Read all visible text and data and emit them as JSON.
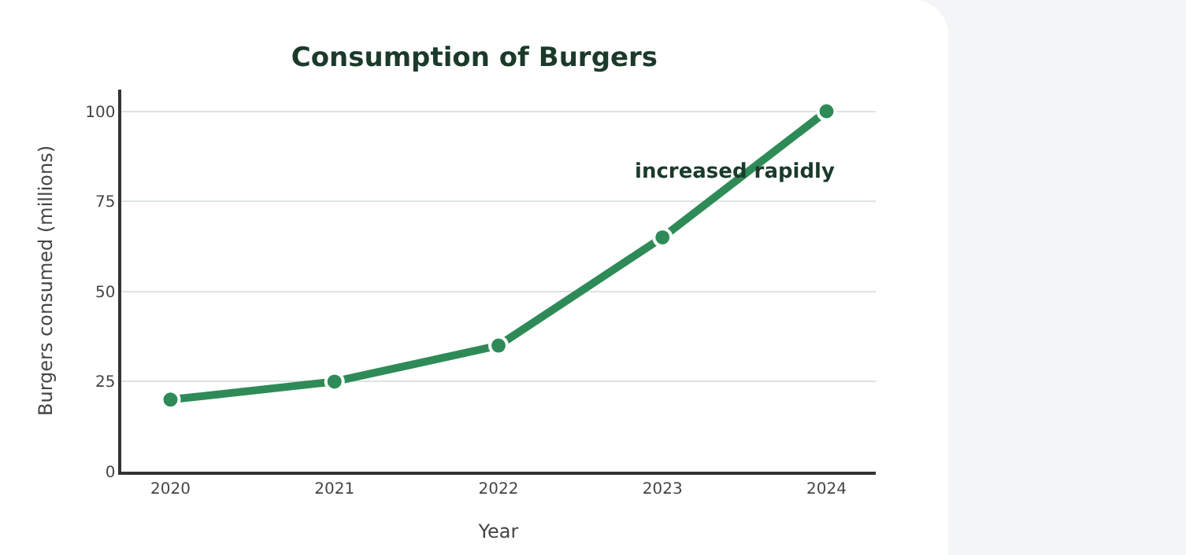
{
  "chart_data": {
    "type": "line",
    "title": "Consumption of Burgers",
    "xlabel": "Year",
    "ylabel": "Burgers consumed (millions)",
    "x": [
      2020,
      2021,
      2022,
      2023,
      2024
    ],
    "series": [
      {
        "color": "#2e8b57",
        "values": [
          20,
          25,
          35,
          65,
          100
        ]
      }
    ],
    "xlim": [
      2019.7,
      2024.3
    ],
    "xticks": [
      2020,
      2021,
      2022,
      2023,
      2024
    ],
    "ylim": [
      0,
      106
    ],
    "yticks": [
      0,
      25,
      50,
      75,
      100
    ],
    "grid": "y",
    "marker": "circle",
    "line_style": "solid",
    "annotations": [
      {
        "text": "increased rapidly",
        "x": 2023.45,
        "y": 83
      }
    ]
  }
}
